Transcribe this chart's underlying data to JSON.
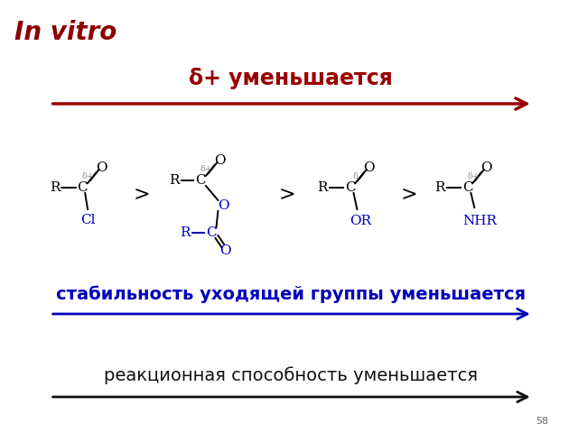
{
  "title": "In vitro",
  "title_color": "#8B0000",
  "title_style": "italic",
  "title_weight": "bold",
  "title_fontsize": 20,
  "arrow1_label": "δ+ уменьшается",
  "arrow1_color": "#990000",
  "arrow1_fontsize": 17,
  "arrow1_weight": "bold",
  "arrow2_label": "стабильность уходящей группы уменьшается",
  "arrow2_color": "#0000BB",
  "arrow2_fontsize": 14,
  "arrow2_weight": "bold",
  "arrow3_label": "реакционная способность уменьшается",
  "arrow3_color": "#111111",
  "arrow3_fontsize": 14,
  "arrow3_weight": "normal",
  "background_color": "#FFFFFF",
  "page_number": "58",
  "mol_color": "#000000",
  "mol_blue": "#0000BB",
  "mol_gray": "#888888"
}
